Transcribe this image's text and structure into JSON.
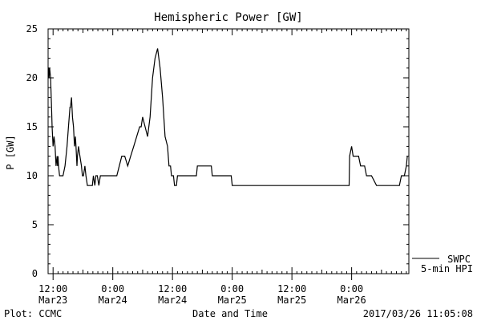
{
  "chart_data": {
    "type": "line",
    "title": "Hemispheric Power [GW]",
    "ylabel": "P [GW]",
    "xlabel": "Date and Time",
    "ylim": [
      0,
      25
    ],
    "xlim": [
      11.0,
      83.5
    ],
    "yticks": [
      "0",
      "5",
      "10",
      "15",
      "20",
      "25"
    ],
    "xticks": [
      {
        "x": 12,
        "time": "12:00",
        "date": "Mar23"
      },
      {
        "x": 24,
        "time": "0:00",
        "date": "Mar24"
      },
      {
        "x": 36,
        "time": "12:00",
        "date": "Mar24"
      },
      {
        "x": 48,
        "time": "0:00",
        "date": "Mar25"
      },
      {
        "x": 60,
        "time": "12:00",
        "date": "Mar25"
      },
      {
        "x": 72,
        "time": "0:00",
        "date": "Mar26"
      }
    ],
    "x_unit": "hours from 00:00 Mar23",
    "grid": false,
    "legend_position": "bottom-right",
    "series": [
      {
        "name": "SWPC 5-min HPI",
        "x": [
          11.0,
          11.1,
          11.2,
          11.3,
          11.5,
          11.7,
          11.8,
          12.0,
          12.2,
          12.4,
          12.6,
          12.8,
          12.9,
          13.0,
          13.1,
          13.3,
          13.6,
          14.0,
          14.4,
          14.8,
          15.1,
          15.4,
          15.5,
          15.7,
          15.9,
          16.1,
          16.3,
          16.5,
          16.6,
          16.8,
          16.9,
          17.1,
          17.4,
          17.7,
          17.9,
          18.1,
          18.4,
          18.6,
          18.9,
          19.3,
          19.6,
          19.9,
          20.1,
          20.4,
          20.6,
          20.9,
          21.2,
          21.5,
          21.7,
          22.0,
          22.3,
          22.6,
          23.0,
          23.4,
          23.8,
          24.3,
          24.8,
          25.3,
          25.8,
          26.4,
          27.0,
          27.6,
          28.2,
          28.8,
          29.4,
          29.7,
          30.0,
          30.5,
          31.0,
          31.5,
          32.0,
          32.5,
          33.0,
          33.5,
          34.0,
          34.5,
          35.0,
          35.3,
          35.6,
          35.8,
          36.0,
          36.2,
          36.4,
          36.6,
          36.8,
          37.0,
          37.2,
          37.5,
          37.8,
          38.0,
          38.2,
          38.4,
          38.7,
          39.0,
          39.2,
          39.4,
          39.6,
          39.8,
          40.0,
          40.2,
          40.4,
          40.6,
          40.8,
          41.0,
          41.2,
          41.4,
          41.6,
          41.8,
          42.0,
          42.2,
          42.4,
          42.6,
          42.8,
          43.0,
          43.2,
          43.5,
          43.8,
          44.0,
          44.3,
          44.6,
          45.0,
          45.4,
          45.8,
          46.2,
          46.6,
          47.0,
          47.4,
          47.8,
          48.0,
          71.5,
          71.6,
          72.0,
          72.3,
          72.6,
          73.0,
          73.4,
          73.8,
          74.2,
          74.6,
          75.0,
          75.5,
          76.0,
          77.0,
          78.0,
          79.0,
          80.0,
          80.5,
          81.0,
          81.3,
          81.6,
          82.0,
          82.3,
          82.6,
          83.0,
          83.2
        ],
        "values": [
          21,
          21,
          20,
          21,
          20,
          17,
          15,
          13,
          14,
          13,
          11,
          12,
          11,
          12,
          11,
          10,
          10,
          10,
          11,
          13,
          15,
          17,
          17,
          18,
          16,
          15,
          13,
          14,
          13,
          11,
          12,
          13,
          12,
          11,
          10,
          10,
          11,
          10,
          9,
          9,
          9,
          9,
          10,
          9,
          10,
          10,
          9,
          10,
          10,
          10,
          10,
          10,
          10,
          10,
          10,
          10,
          10,
          11,
          12,
          12,
          11,
          12,
          13,
          14,
          15,
          15,
          16,
          15,
          14,
          16,
          20,
          22,
          23,
          21,
          18,
          14,
          13,
          11,
          11,
          10,
          10,
          10,
          9,
          9,
          9,
          10,
          10,
          10,
          10,
          10,
          10,
          10,
          10,
          10,
          10,
          10,
          10,
          10,
          10,
          10,
          10,
          10,
          10,
          11,
          11,
          11,
          11,
          11,
          11,
          11,
          11,
          11,
          11,
          11,
          11,
          11,
          11,
          10,
          10,
          10,
          10,
          10,
          10,
          10,
          10,
          10,
          10,
          10,
          9,
          9,
          12,
          13,
          12,
          12,
          12,
          12,
          11,
          11,
          11,
          10,
          10,
          10,
          9,
          9,
          9,
          9,
          9,
          9,
          9,
          9,
          10,
          10,
          10,
          11,
          12
        ]
      }
    ]
  },
  "legend": {
    "line1": "SWPC",
    "line2": "5-min HPI"
  },
  "footer": {
    "left": "Plot: CCMC",
    "center": "Date and Time",
    "right": "2017/03/26 11:05:08"
  }
}
